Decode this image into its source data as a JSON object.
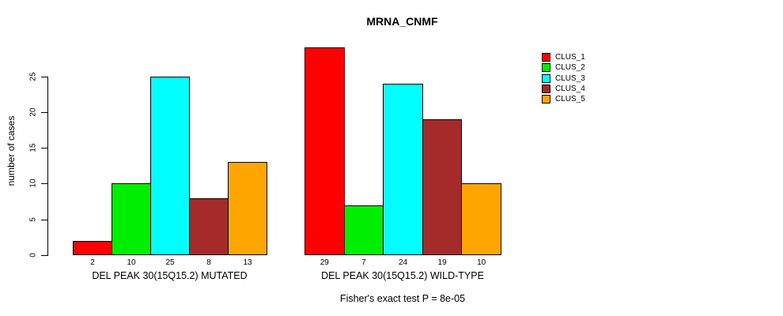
{
  "chart_data": {
    "type": "bar",
    "title": "MRNA_CNMF",
    "xlabel": "",
    "ylabel": "number of cases",
    "ylim": [
      0,
      25
    ],
    "yticks": [
      0,
      5,
      10,
      15,
      20,
      25
    ],
    "grid": false,
    "legend_position": "right",
    "categories": [
      "DEL PEAK 30(15Q15.2) MUTATED",
      "DEL PEAK 30(15Q15.2) WILD-TYPE"
    ],
    "series": [
      {
        "name": "CLUS_1",
        "color": "#FF0000",
        "values": [
          2,
          29
        ]
      },
      {
        "name": "CLUS_2",
        "color": "#00EE00",
        "values": [
          10,
          7
        ]
      },
      {
        "name": "CLUS_3",
        "color": "#00FFFF",
        "values": [
          25,
          24
        ]
      },
      {
        "name": "CLUS_4",
        "color": "#A52A2A",
        "values": [
          8,
          19
        ]
      },
      {
        "name": "CLUS_5",
        "color": "#FFA500",
        "values": [
          13,
          10
        ]
      }
    ],
    "bar_value_labels": [
      [
        2,
        10,
        25,
        8,
        13
      ],
      [
        29,
        7,
        24,
        19,
        10
      ]
    ],
    "annotation": "Fisher's exact test P = 8e-05"
  },
  "figure": {
    "background": "#FFFFFF",
    "axis_color": "#000000"
  }
}
